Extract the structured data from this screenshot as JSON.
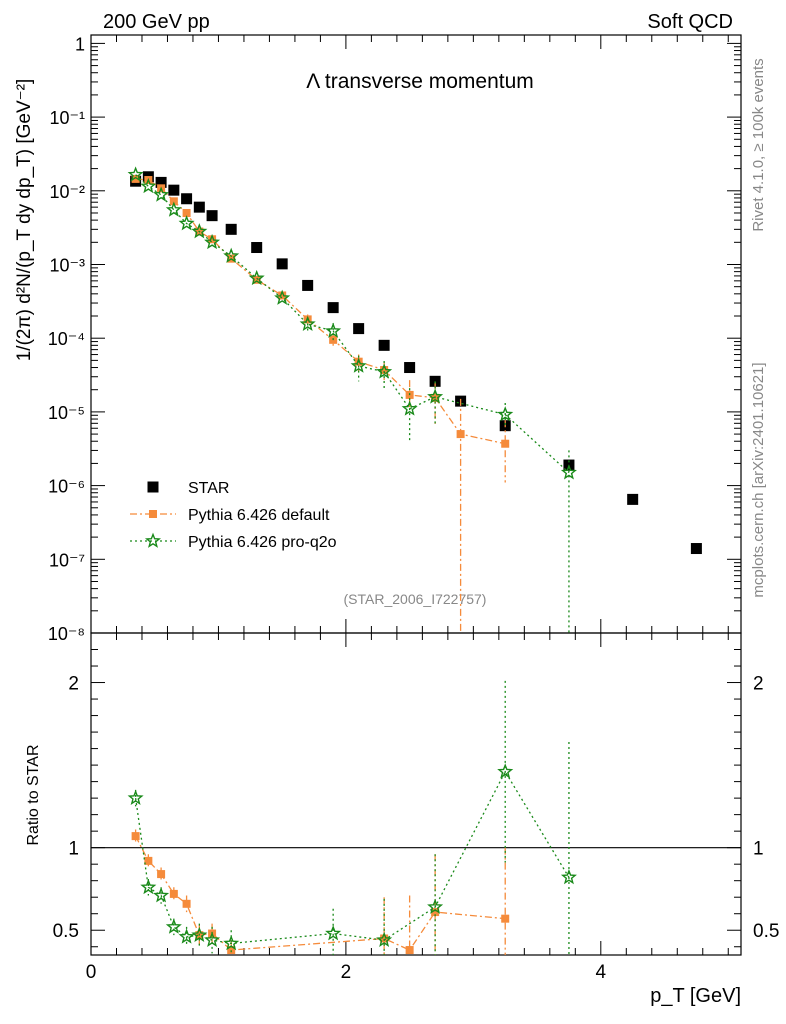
{
  "header": {
    "left": "200 GeV pp",
    "right": "Soft QCD"
  },
  "side": {
    "rivet": "Rivet 4.1.0, ≥ 100k events",
    "mcplots": "mcplots.cern.ch [arXiv:2401.10621]"
  },
  "colors": {
    "star": "#000000",
    "default": "#f58b3b",
    "proq2o": "#1a8a1a"
  },
  "chart_data": [
    {
      "type": "scatter",
      "title": "Λ transverse momentum",
      "watermark": "(STAR_2006_I722757)",
      "ylabel": "1/(2π)  d²N/(p_T dy dp_T) [GeV⁻²]",
      "xlim": [
        0,
        5.1
      ],
      "ylim": [
        1e-08,
        1.3
      ],
      "yscale": "log",
      "yticks": [
        {
          "v": 1,
          "label": "1"
        },
        {
          "v": 0.1,
          "label": "10⁻¹"
        },
        {
          "v": 0.01,
          "label": "10⁻²"
        },
        {
          "v": 0.001,
          "label": "10⁻³"
        },
        {
          "v": 0.0001,
          "label": "10⁻⁴"
        },
        {
          "v": 1e-05,
          "label": "10⁻⁵"
        },
        {
          "v": 1e-06,
          "label": "10⁻⁶"
        },
        {
          "v": 1e-07,
          "label": "10⁻⁷"
        },
        {
          "v": 1e-08,
          "label": "10⁻⁸"
        }
      ],
      "legend": {
        "position": "lower-left",
        "entries": [
          "STAR",
          "Pythia 6.426 default",
          "Pythia 6.426 pro-q2o"
        ]
      },
      "series": [
        {
          "name": "STAR",
          "x": [
            0.35,
            0.45,
            0.55,
            0.65,
            0.75,
            0.85,
            0.95,
            1.1,
            1.3,
            1.5,
            1.7,
            1.9,
            2.1,
            2.3,
            2.5,
            2.7,
            2.9,
            3.25,
            3.75,
            4.25,
            4.75
          ],
          "y": [
            0.0135,
            0.0155,
            0.013,
            0.0102,
            0.0078,
            0.006,
            0.0046,
            0.003,
            0.0017,
            0.00102,
            0.00052,
            0.00026,
            0.000135,
            8e-05,
            4e-05,
            2.6e-05,
            1.4e-05,
            6.5e-06,
            1.9e-06,
            6.5e-07,
            1.4e-07
          ]
        },
        {
          "name": "Pythia 6.426 default",
          "x": [
            0.35,
            0.45,
            0.55,
            0.65,
            0.75,
            0.85,
            0.95,
            1.1,
            1.3,
            1.5,
            1.7,
            1.9,
            2.1,
            2.3,
            2.5,
            2.7,
            2.9,
            3.25
          ],
          "y": [
            0.0145,
            0.014,
            0.0108,
            0.0072,
            0.005,
            0.0028,
            0.0022,
            0.0012,
            0.00062,
            0.00038,
            0.00018,
            9.5e-05,
            4.8e-05,
            3.7e-05,
            1.7e-05,
            1.55e-05,
            5e-06,
            3.7e-06
          ],
          "yerr_hi": [
            0,
            0,
            0,
            0,
            0,
            0,
            0,
            0,
            0,
            0,
            3e-05,
            2e-05,
            1.2e-05,
            1e-05,
            1e-05,
            1e-05,
            1e-05,
            4e-06
          ],
          "yerr_lo": [
            0,
            0,
            0,
            0,
            0,
            0,
            0,
            0,
            0,
            0,
            3e-05,
            2e-05,
            1.2e-05,
            1e-05,
            6e-06,
            9e-06,
            4.99e-06,
            2.6e-06
          ]
        },
        {
          "name": "Pythia 6.426 pro-q2o",
          "x": [
            0.35,
            0.45,
            0.55,
            0.65,
            0.75,
            0.85,
            0.95,
            1.1,
            1.3,
            1.5,
            1.7,
            1.9,
            2.1,
            2.3,
            2.5,
            2.7,
            3.25,
            3.75
          ],
          "y": [
            0.0165,
            0.0115,
            0.0088,
            0.0055,
            0.0036,
            0.0028,
            0.002,
            0.0013,
            0.00065,
            0.00035,
            0.000155,
            0.000125,
            4.2e-05,
            3.5e-05,
            1.1e-05,
            1.6e-05,
            9.2e-06,
            1.5e-06
          ],
          "yerr_hi": [
            0,
            0,
            0,
            0,
            0,
            0,
            0,
            0,
            0,
            0,
            3e-05,
            3.5e-05,
            1.6e-05,
            1.4e-05,
            1e-05,
            1e-05,
            4e-06,
            1.5e-06
          ],
          "yerr_lo": [
            0,
            0,
            0,
            0,
            0,
            0,
            0,
            0,
            0,
            0,
            3e-05,
            3.5e-05,
            1.6e-05,
            1.4e-05,
            7e-06,
            9e-06,
            3e-06,
            1.49e-06
          ]
        }
      ]
    },
    {
      "type": "scatter",
      "title": "",
      "ylabel": "Ratio to STAR",
      "xlabel": "p_T [GeV]",
      "xlim": [
        0,
        5.1
      ],
      "ylim": [
        0.35,
        2.3
      ],
      "xticks": [
        0,
        2,
        4
      ],
      "yticks": [
        0.5,
        1,
        2
      ],
      "reference_line": 1,
      "series": [
        {
          "name": "Pythia 6.426 default",
          "x": [
            0.35,
            0.45,
            0.55,
            0.65,
            0.75,
            0.85,
            0.95,
            1.1,
            2.3,
            2.5,
            2.7,
            3.25
          ],
          "y": [
            1.07,
            0.92,
            0.84,
            0.72,
            0.66,
            0.47,
            0.48,
            0.38,
            0.45,
            0.38,
            0.61,
            0.57
          ],
          "yerr_hi": [
            0.04,
            0.04,
            0.04,
            0.04,
            0.05,
            0.06,
            0.06,
            0.06,
            0.25,
            0.33,
            0.35,
            0.43
          ],
          "yerr_lo": [
            0.04,
            0.04,
            0.04,
            0.04,
            0.05,
            0.06,
            0.06,
            0.06,
            0.25,
            0.2,
            0.3,
            0.3
          ]
        },
        {
          "name": "Pythia 6.426 pro-q2o",
          "x": [
            0.35,
            0.45,
            0.55,
            0.65,
            0.75,
            0.85,
            0.95,
            1.1,
            1.9,
            2.3,
            2.7,
            3.25,
            3.75
          ],
          "y": [
            1.3,
            0.76,
            0.71,
            0.52,
            0.46,
            0.47,
            0.44,
            0.42,
            0.48,
            0.44,
            0.64,
            1.46,
            0.82
          ],
          "yerr_hi": [
            0.05,
            0.05,
            0.05,
            0.05,
            0.06,
            0.07,
            0.08,
            0.08,
            0.15,
            0.25,
            0.32,
            0.55,
            0.82
          ],
          "yerr_lo": [
            0.05,
            0.05,
            0.05,
            0.05,
            0.06,
            0.07,
            0.08,
            0.08,
            0.15,
            0.1,
            0.3,
            0.55,
            0.5
          ]
        }
      ]
    }
  ]
}
